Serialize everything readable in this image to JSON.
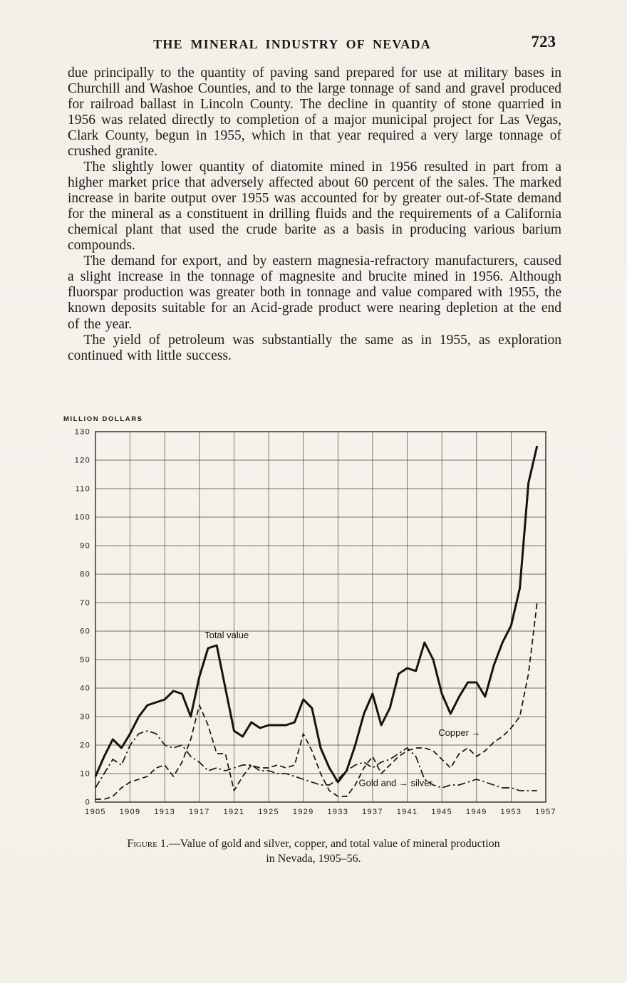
{
  "colors": {
    "paper": "#f4f1ea",
    "ink": "#1d1a16"
  },
  "page": {
    "header": "THE MINERAL INDUSTRY OF NEVADA",
    "page_number": "723",
    "paragraphs": [
      "due principally to the quantity of paving sand prepared for use at military bases in Churchill and Washoe Counties, and to the large tonnage of sand and gravel produced for railroad ballast in Lincoln County. The decline in quantity of stone quarried in 1956 was related directly to completion of a major municipal project for Las Vegas, Clark County, begun in 1955, which in that year required a very large tonnage of crushed granite.",
      "The slightly lower quantity of diatomite mined in 1956 resulted in part from a higher market price that adversely affected about 60 percent of the sales. The marked increase in barite output over 1955 was accounted for by greater out-of-State demand for the mineral as a constituent in drilling fluids and the requirements of a California chemical plant that used the crude barite as a basis in producing various barium compounds.",
      "The demand for export, and by eastern magnesia-refractory manufacturers, caused a slight increase in the tonnage of magnesite and brucite mined in 1956. Although fluorspar production was greater both in tonnage and value compared with 1955, the known deposits suitable for an Acid-grade product were nearing depletion at the end of the year.",
      "The yield of petroleum was substantially the same as in 1955, as exploration continued with little success."
    ],
    "caption_prefix": "Figure 1.",
    "caption_line1": "—Value of gold and silver, copper, and total value of mineral production",
    "caption_line2": "in Nevada, 1905–56."
  },
  "chart_data": {
    "type": "line",
    "title": "",
    "xlabel": "",
    "ylabel": "MILLION DOLLARS",
    "grid": true,
    "legend_position": "inline-annotations",
    "xlim": [
      1905,
      1957
    ],
    "ylim": [
      0,
      130
    ],
    "x_ticks": [
      1905,
      1909,
      1913,
      1917,
      1921,
      1925,
      1929,
      1933,
      1937,
      1941,
      1945,
      1949,
      1953,
      1957
    ],
    "y_ticks": [
      0,
      10,
      20,
      30,
      40,
      50,
      60,
      70,
      80,
      90,
      100,
      110,
      120,
      130
    ],
    "x_start": 1905,
    "series": [
      {
        "name": "Total value",
        "style": "solid",
        "values": [
          9,
          16,
          22,
          19,
          24,
          30,
          34,
          35,
          36,
          39,
          38,
          30,
          44,
          54,
          55,
          40,
          25,
          23,
          28,
          26,
          27,
          27,
          27,
          28,
          36,
          33,
          19,
          12,
          7,
          11,
          20,
          31,
          38,
          27,
          33,
          45,
          47,
          46,
          56,
          50,
          38,
          31,
          37,
          42,
          42,
          37,
          48,
          56,
          62,
          75,
          112,
          125
        ]
      },
      {
        "name": "Copper",
        "style": "dashed",
        "values": [
          1,
          1,
          2,
          5,
          7,
          8,
          9,
          12,
          13,
          9,
          14,
          22,
          34,
          27,
          17,
          17,
          4,
          9,
          13,
          12,
          12,
          13,
          12,
          13,
          24,
          18,
          10,
          4,
          2,
          2,
          6,
          12,
          16,
          10,
          13,
          16,
          18,
          19,
          19,
          18,
          15,
          12,
          17,
          19,
          16,
          18,
          21,
          23,
          26,
          30,
          45,
          70
        ]
      },
      {
        "name": "Gold and silver",
        "style": "dashdot",
        "values": [
          5,
          10,
          15,
          13,
          20,
          24,
          25,
          24,
          20,
          19,
          20,
          16,
          14,
          11,
          12,
          11,
          12,
          13,
          13,
          11,
          11,
          10,
          10,
          9,
          8,
          7,
          6,
          6,
          8,
          11,
          13,
          14,
          12,
          14,
          15,
          17,
          19,
          16,
          8,
          6,
          5,
          6,
          6,
          7,
          8,
          7,
          6,
          5,
          5,
          4,
          4,
          4
        ]
      }
    ],
    "annotations": [
      {
        "text": "Total value",
        "year": 1917.6,
        "value": 57.5
      },
      {
        "text": "Copper →",
        "year": 1944.6,
        "value": 23.2
      },
      {
        "text": "Gold and → silver",
        "year": 1935.4,
        "value": 5.6
      }
    ]
  }
}
